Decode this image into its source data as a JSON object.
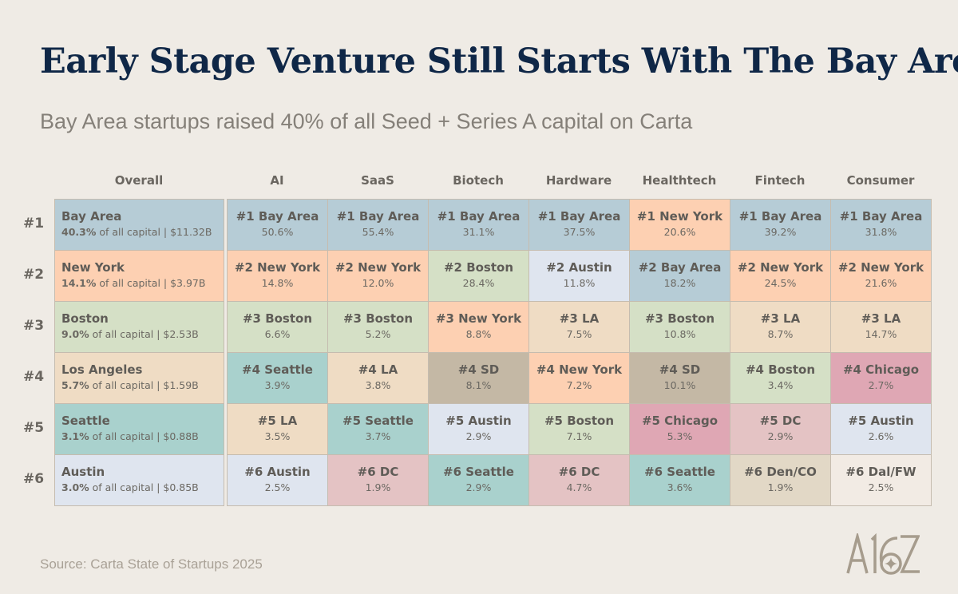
{
  "title": "Early Stage Venture Still Starts With The Bay Area",
  "subtitle": "Bay Area startups raised 40% of all Seed + Series A capital on Carta",
  "source": "Source: Carta State of Startups 2025",
  "logo_text": "A16Z",
  "city_colors": {
    "Bay Area": "#b6ccd6",
    "New York": "#fdd0b2",
    "Boston": "#d5e0c6",
    "LA": "#efdcc4",
    "Los Angeles": "#efdcc4",
    "Seattle": "#a9d1cd",
    "Austin": "#dfe5ef",
    "SD": "#c4b8a5",
    "Chicago": "#dfa7b4",
    "DC": "#e4c3c4",
    "Den/CO": "#e2d8c6",
    "Dal/FW": "#f2ebe4"
  },
  "chart_data": {
    "type": "table",
    "ranks": [
      "#1",
      "#2",
      "#3",
      "#4",
      "#5",
      "#6"
    ],
    "overall": {
      "header": "Overall",
      "rows": [
        {
          "city": "Bay Area",
          "pct": "40.3%",
          "suffix": " of all capital | $11.32B"
        },
        {
          "city": "New York",
          "pct": "14.1%",
          "suffix": " of all capital | $3.97B"
        },
        {
          "city": "Boston",
          "pct": "9.0%",
          "suffix": " of all capital | $2.53B"
        },
        {
          "city": "Los Angeles",
          "pct": "5.7%",
          "suffix": " of all capital | $1.59B"
        },
        {
          "city": "Seattle",
          "pct": "3.1%",
          "suffix": " of all capital | $0.88B"
        },
        {
          "city": "Austin",
          "pct": "3.0%",
          "suffix": " of all capital | $0.85B"
        }
      ]
    },
    "categories": [
      {
        "header": "AI",
        "rows": [
          {
            "label": "#1 Bay Area",
            "city": "Bay Area",
            "pct": "50.6%"
          },
          {
            "label": "#2 New York",
            "city": "New York",
            "pct": "14.8%"
          },
          {
            "label": "#3 Boston",
            "city": "Boston",
            "pct": "6.6%"
          },
          {
            "label": "#4 Seattle",
            "city": "Seattle",
            "pct": "3.9%"
          },
          {
            "label": "#5 LA",
            "city": "LA",
            "pct": "3.5%"
          },
          {
            "label": "#6 Austin",
            "city": "Austin",
            "pct": "2.5%"
          }
        ]
      },
      {
        "header": "SaaS",
        "rows": [
          {
            "label": "#1 Bay Area",
            "city": "Bay Area",
            "pct": "55.4%"
          },
          {
            "label": "#2 New York",
            "city": "New York",
            "pct": "12.0%"
          },
          {
            "label": "#3 Boston",
            "city": "Boston",
            "pct": "5.2%"
          },
          {
            "label": "#4 LA",
            "city": "LA",
            "pct": "3.8%"
          },
          {
            "label": "#5 Seattle",
            "city": "Seattle",
            "pct": "3.7%"
          },
          {
            "label": "#6 DC",
            "city": "DC",
            "pct": "1.9%"
          }
        ]
      },
      {
        "header": "Biotech",
        "rows": [
          {
            "label": "#1 Bay Area",
            "city": "Bay Area",
            "pct": "31.1%"
          },
          {
            "label": "#2 Boston",
            "city": "Boston",
            "pct": "28.4%"
          },
          {
            "label": "#3 New York",
            "city": "New York",
            "pct": "8.8%"
          },
          {
            "label": "#4 SD",
            "city": "SD",
            "pct": "8.1%"
          },
          {
            "label": "#5 Austin",
            "city": "Austin",
            "pct": "2.9%"
          },
          {
            "label": "#6 Seattle",
            "city": "Seattle",
            "pct": "2.9%"
          }
        ]
      },
      {
        "header": "Hardware",
        "rows": [
          {
            "label": "#1 Bay Area",
            "city": "Bay Area",
            "pct": "37.5%"
          },
          {
            "label": "#2 Austin",
            "city": "Austin",
            "pct": "11.8%"
          },
          {
            "label": "#3 LA",
            "city": "LA",
            "pct": "7.5%"
          },
          {
            "label": "#4 New York",
            "city": "New York",
            "pct": "7.2%"
          },
          {
            "label": "#5 Boston",
            "city": "Boston",
            "pct": "7.1%"
          },
          {
            "label": "#6 DC",
            "city": "DC",
            "pct": "4.7%"
          }
        ]
      },
      {
        "header": "Healthtech",
        "rows": [
          {
            "label": "#1 New York",
            "city": "New York",
            "pct": "20.6%"
          },
          {
            "label": "#2 Bay Area",
            "city": "Bay Area",
            "pct": "18.2%"
          },
          {
            "label": "#3 Boston",
            "city": "Boston",
            "pct": "10.8%"
          },
          {
            "label": "#4 SD",
            "city": "SD",
            "pct": "10.1%"
          },
          {
            "label": "#5 Chicago",
            "city": "Chicago",
            "pct": "5.3%"
          },
          {
            "label": "#6 Seattle",
            "city": "Seattle",
            "pct": "3.6%"
          }
        ]
      },
      {
        "header": "Fintech",
        "rows": [
          {
            "label": "#1 Bay Area",
            "city": "Bay Area",
            "pct": "39.2%"
          },
          {
            "label": "#2 New York",
            "city": "New York",
            "pct": "24.5%"
          },
          {
            "label": "#3 LA",
            "city": "LA",
            "pct": "8.7%"
          },
          {
            "label": "#4 Boston",
            "city": "Boston",
            "pct": "3.4%"
          },
          {
            "label": "#5 DC",
            "city": "DC",
            "pct": "2.9%"
          },
          {
            "label": "#6 Den/CO",
            "city": "Den/CO",
            "pct": "1.9%"
          }
        ]
      },
      {
        "header": "Consumer",
        "rows": [
          {
            "label": "#1 Bay Area",
            "city": "Bay Area",
            "pct": "31.8%"
          },
          {
            "label": "#2 New York",
            "city": "New York",
            "pct": "21.6%"
          },
          {
            "label": "#3 LA",
            "city": "LA",
            "pct": "14.7%"
          },
          {
            "label": "#4 Chicago",
            "city": "Chicago",
            "pct": "2.7%"
          },
          {
            "label": "#5 Austin",
            "city": "Austin",
            "pct": "2.6%"
          },
          {
            "label": "#6 Dal/FW",
            "city": "Dal/FW",
            "pct": "2.5%"
          }
        ]
      }
    ]
  }
}
